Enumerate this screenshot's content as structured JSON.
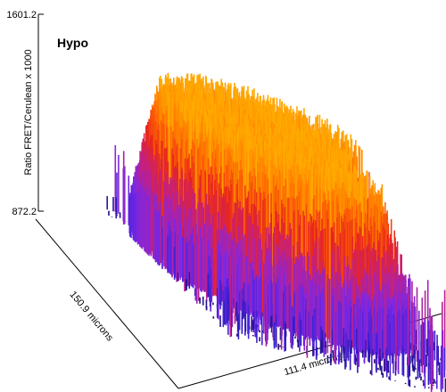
{
  "panel_title": "Hypo",
  "chart_data": {
    "type": "surface",
    "title": "Hypo",
    "zlabel": "Ratio FRET/Cerulean x 1000",
    "zlim": [
      872.2,
      1601.2
    ],
    "z_tick_labels": [
      "1601.2",
      "872.2"
    ],
    "x_axis_label": "111.4 microns",
    "y_axis_label": "150.9 microns",
    "colormap": [
      "#1a0a6b",
      "#3a1fd0",
      "#7a28e8",
      "#c0208a",
      "#e8241e",
      "#ff6a00",
      "#ffb000",
      "#ffe24a"
    ],
    "baseline_ratio": 872.2,
    "cell_plateau_ratio": 1480,
    "peak_ratio": 1601.2
  }
}
